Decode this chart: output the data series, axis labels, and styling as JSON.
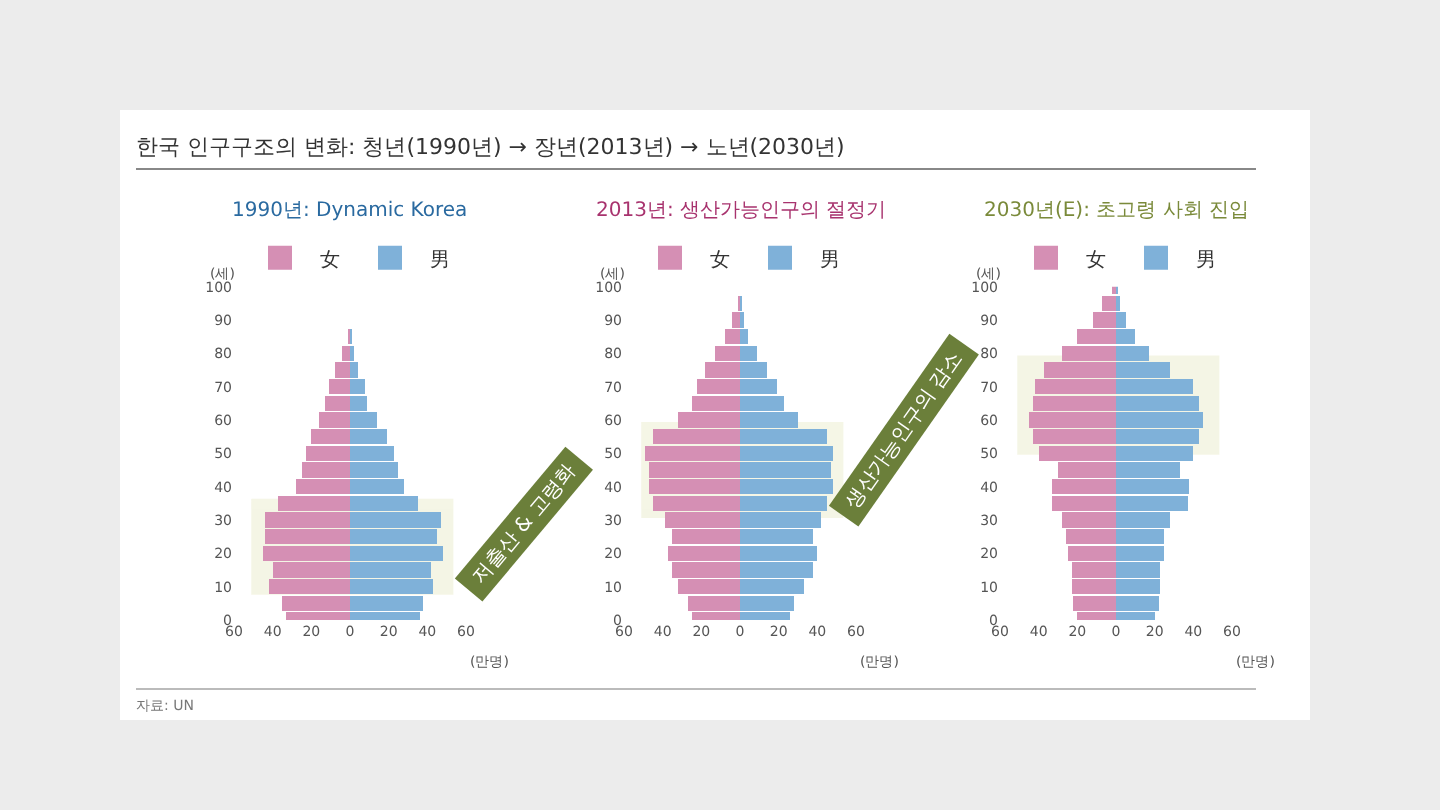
{
  "chart_data": [
    {
      "type": "bar",
      "orientation": "horizontal",
      "title": "1990년: Dynamic Korea",
      "ylabel": "(세)",
      "xlabel": "(만명)",
      "x": [
        0,
        5,
        10,
        15,
        20,
        25,
        30,
        35,
        40,
        45,
        50,
        55,
        60,
        65,
        70,
        75,
        80,
        85
      ],
      "series": [
        {
          "name": "女",
          "color": "#d58fb4",
          "values": [
            -33,
            -35,
            -42,
            -40,
            -45,
            -44,
            -44,
            -37,
            -28,
            -25,
            -23,
            -20,
            -16,
            -13,
            -11,
            -8,
            -4,
            -1
          ]
        },
        {
          "name": "男",
          "color": "#7fb1d9",
          "values": [
            36,
            38,
            43,
            42,
            48,
            45,
            47,
            35,
            28,
            25,
            23,
            19,
            14,
            9,
            8,
            4,
            2,
            1
          ]
        }
      ],
      "xlim": [
        -60,
        60
      ],
      "xticks": [
        {
          "value": -60,
          "label": "60"
        },
        {
          "value": -40,
          "label": "40"
        },
        {
          "value": -20,
          "label": "20"
        },
        0,
        20,
        40,
        60
      ],
      "ylim": [
        0,
        100
      ],
      "yticks": [
        0,
        10,
        20,
        30,
        40,
        50,
        60,
        70,
        80,
        90,
        100
      ],
      "stacked": true,
      "bands": [
        {
          "axis": "y",
          "from": 8,
          "to": 36,
          "color": "#d6d99a"
        }
      ],
      "legend": "top",
      "annotations": [
        "한국 인구구조의 변화: 청년(1990년) → 장년(2013년) → 노년(2030년)",
        "저출산 & 고령화",
        "자료: UN"
      ]
    },
    {
      "type": "bar",
      "orientation": "horizontal",
      "title": "2013년: 생산가능인구의 절정기",
      "ylabel": "(세)",
      "xlabel": "(만명)",
      "x": [
        0,
        5,
        10,
        15,
        20,
        25,
        30,
        35,
        40,
        45,
        50,
        55,
        60,
        65,
        70,
        75,
        80,
        85,
        90,
        95
      ],
      "series": [
        {
          "name": "女",
          "color": "#d58fb4",
          "values": [
            -25,
            -27,
            -32,
            -35,
            -37,
            -35,
            -39,
            -45,
            -47,
            -47,
            -49,
            -45,
            -32,
            -25,
            -22,
            -18,
            -13,
            -8,
            -4,
            -1
          ]
        },
        {
          "name": "男",
          "color": "#7fb1d9",
          "values": [
            26,
            28,
            33,
            38,
            40,
            38,
            42,
            45,
            48,
            47,
            48,
            45,
            30,
            23,
            19,
            14,
            9,
            4,
            2,
            1
          ]
        }
      ],
      "xlim": [
        -60,
        60
      ],
      "xticks": [
        {
          "value": -60,
          "label": "60"
        },
        {
          "value": -40,
          "label": "40"
        },
        {
          "value": -20,
          "label": "20"
        },
        0,
        20,
        40,
        60
      ],
      "ylim": [
        0,
        100
      ],
      "yticks": [
        0,
        10,
        20,
        30,
        40,
        50,
        60,
        70,
        80,
        90,
        100
      ],
      "stacked": true,
      "bands": [
        {
          "axis": "y",
          "from": 31,
          "to": 59,
          "color": "#d6d99a"
        }
      ],
      "legend": "top",
      "annotations": [
        "생산가능인구의 감소"
      ]
    },
    {
      "type": "bar",
      "orientation": "horizontal",
      "title": "2030년(E): 초고령 사회 진입",
      "ylabel": "(세)",
      "xlabel": "(만명)",
      "x": [
        0,
        5,
        10,
        15,
        20,
        25,
        30,
        35,
        40,
        45,
        50,
        55,
        60,
        65,
        70,
        75,
        80,
        85,
        90,
        95,
        100
      ],
      "series": [
        {
          "name": "女",
          "color": "#d58fb4",
          "values": [
            -20,
            -22,
            -23,
            -23,
            -25,
            -26,
            -28,
            -33,
            -33,
            -30,
            -40,
            -43,
            -45,
            -43,
            -42,
            -37,
            -28,
            -20,
            -12,
            -7,
            -2
          ]
        },
        {
          "name": "男",
          "color": "#7fb1d9",
          "values": [
            20,
            22,
            23,
            23,
            25,
            25,
            28,
            37,
            38,
            33,
            40,
            43,
            45,
            43,
            40,
            28,
            17,
            10,
            5,
            2,
            1
          ]
        }
      ],
      "xlim": [
        -60,
        60
      ],
      "xticks": [
        {
          "value": -60,
          "label": "60"
        },
        {
          "value": -40,
          "label": "40"
        },
        {
          "value": -20,
          "label": "20"
        },
        0,
        20,
        40,
        60
      ],
      "ylim": [
        0,
        100
      ],
      "yticks": [
        0,
        10,
        20,
        30,
        40,
        50,
        60,
        70,
        80,
        90,
        100
      ],
      "stacked": true,
      "bands": [
        {
          "axis": "y",
          "from": 50,
          "to": 79,
          "color": "#d6d99a"
        }
      ],
      "legend": "top"
    }
  ]
}
